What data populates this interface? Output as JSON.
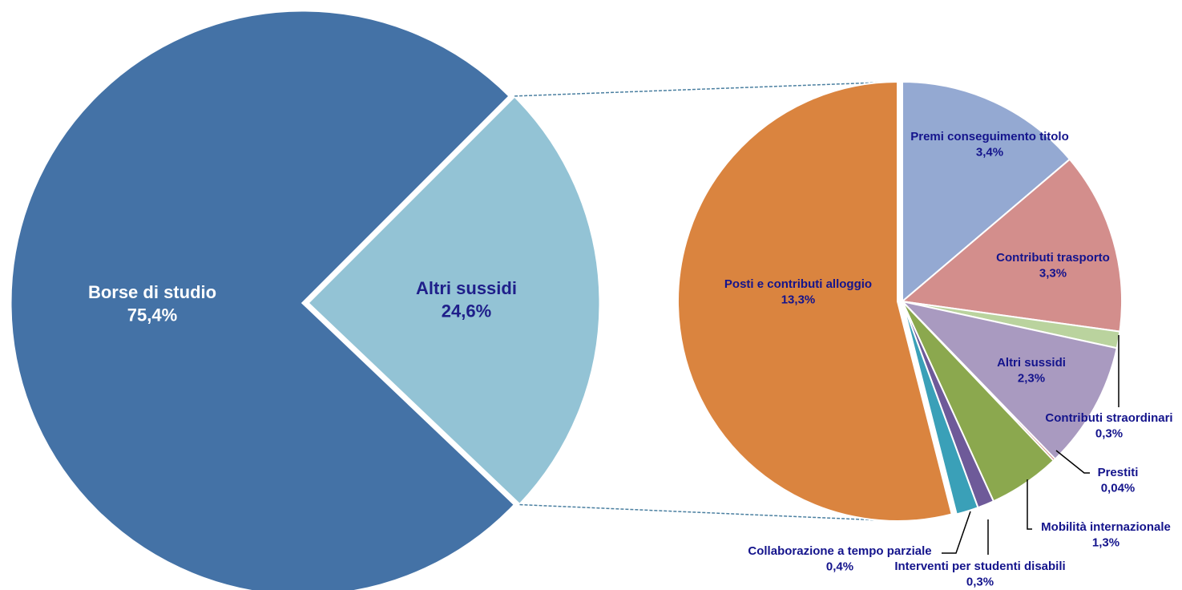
{
  "chart_data": [
    {
      "type": "pie",
      "slices": [
        {
          "name": "Borse di studio",
          "label": "75,4%",
          "value": 75.4,
          "color": "#4472A6",
          "text_color": "#FFFFFF"
        },
        {
          "name": "Altri sussidi",
          "label": "24,6%",
          "value": 24.6,
          "color": "#93C3D5",
          "text_color": "#1F1F8A"
        }
      ]
    },
    {
      "type": "pie",
      "label_color": "#14148C",
      "slices": [
        {
          "name": "Premi conseguimento titolo",
          "label": "3,4%",
          "value": 3.4,
          "color": "#94A9D2"
        },
        {
          "name": "Contributi trasporto",
          "label": "3,3%",
          "value": 3.3,
          "color": "#D38E8C"
        },
        {
          "name": "Contributi straordinari",
          "label": "0,3%",
          "value": 0.3,
          "color": "#BAD39E"
        },
        {
          "name": "Altri sussidi",
          "label": "2,3%",
          "value": 2.3,
          "color": "#A99AC0"
        },
        {
          "name": "Prestiti",
          "label": "0,04%",
          "value": 0.04,
          "color": "#C0504D"
        },
        {
          "name": "Mobilità internazionale",
          "label": "1,3%",
          "value": 1.3,
          "color": "#8BA84E"
        },
        {
          "name": "Interventi per studenti disabili",
          "label": "0,3%",
          "value": 0.3,
          "color": "#6E5A99"
        },
        {
          "name": "Collaborazione a tempo parziale",
          "label": "0,4%",
          "value": 0.4,
          "color": "#3AA0B8"
        },
        {
          "name": "Posti e contributi alloggio",
          "label": "13,3%",
          "value": 13.3,
          "color": "#DA843F"
        }
      ]
    }
  ]
}
